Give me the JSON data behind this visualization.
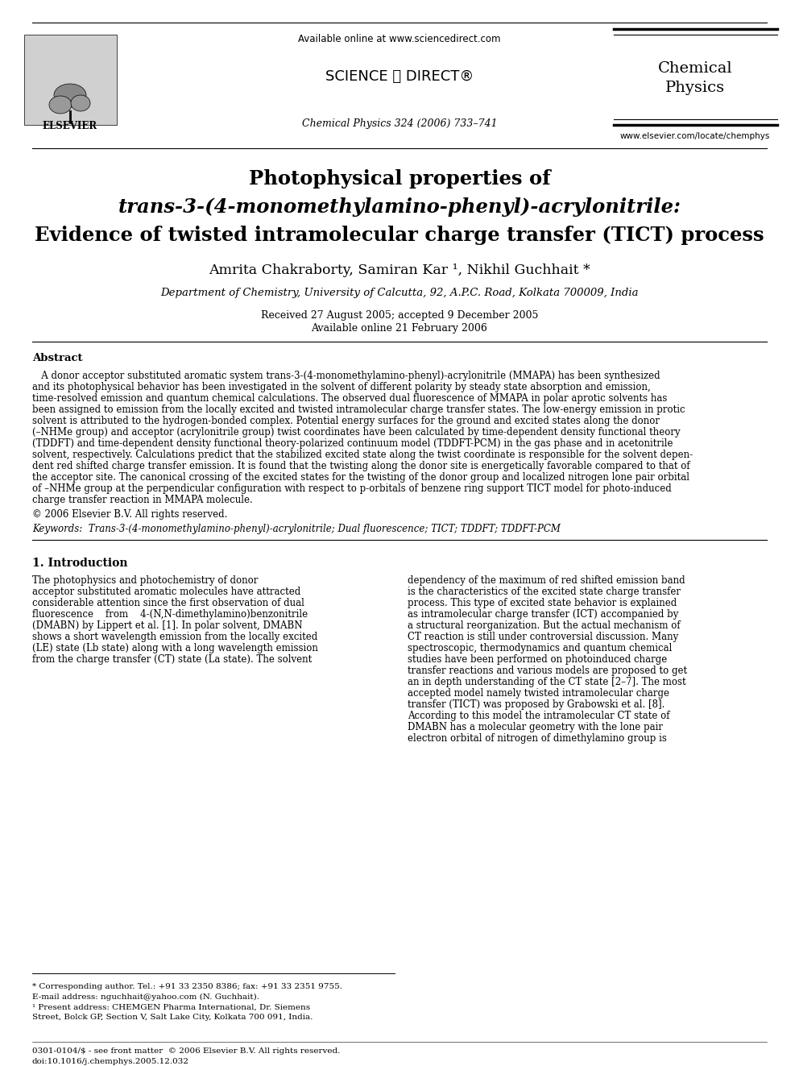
{
  "bg_color": "#ffffff",
  "available_online": "Available online at www.sciencedirect.com",
  "journal_ref": "Chemical Physics 324 (2006) 733–741",
  "journal_title": "Chemical\nPhysics",
  "website": "www.elsevier.com/locate/chemphys",
  "elsevier_label": "ELSEVIER",
  "sciencedirect_label": "SCIENCE ⓐ DIRECT®",
  "title_line1": "Photophysical properties of",
  "title_line2_italic": "trans",
  "title_line2_rest": "-3-(4-monomethylamino-phenyl)-acrylonitrile:",
  "title_line3": "Evidence of twisted intramolecular charge transfer (TICT) process",
  "authors": "Amrita Chakraborty, Samiran Kar ¹, Nikhil Guchhait *",
  "affiliation": "Department of Chemistry, University of Calcutta, 92, A.P.C. Road, Kolkata 700009, India",
  "received": "Received 27 August 2005; accepted 9 December 2005",
  "available_date": "Available online 21 February 2006",
  "abstract_label": "Abstract",
  "abstract_lines": [
    "   A donor acceptor substituted aromatic system trans-3-(4-monomethylamino-phenyl)-acrylonitrile (MMAPA) has been synthesized",
    "and its photophysical behavior has been investigated in the solvent of different polarity by steady state absorption and emission,",
    "time-resolved emission and quantum chemical calculations. The observed dual fluorescence of MMAPA in polar aprotic solvents has",
    "been assigned to emission from the locally excited and twisted intramolecular charge transfer states. The low-energy emission in protic",
    "solvent is attributed to the hydrogen-bonded complex. Potential energy surfaces for the ground and excited states along the donor",
    "(–NHMe group) and acceptor (acrylonitrile group) twist coordinates have been calculated by time-dependent density functional theory",
    "(TDDFT) and time-dependent density functional theory-polarized continuum model (TDDFT-PCM) in the gas phase and in acetonitrile",
    "solvent, respectively. Calculations predict that the stabilized excited state along the twist coordinate is responsible for the solvent depen-",
    "dent red shifted charge transfer emission. It is found that the twisting along the donor site is energetically favorable compared to that of",
    "the acceptor site. The canonical crossing of the excited states for the twisting of the donor group and localized nitrogen lone pair orbital",
    "of –NHMe group at the perpendicular configuration with respect to p-orbitals of benzene ring support TICT model for photo-induced",
    "charge transfer reaction in MMAPA molecule."
  ],
  "copyright": "© 2006 Elsevier B.V. All rights reserved.",
  "keywords_line": "Keywords:  Trans-3-(4-monomethylamino-phenyl)-acrylonitrile; Dual fluorescence; TICT; TDDFT; TDDFT-PCM",
  "intro_title": "1. Introduction",
  "intro_left_lines": [
    "The photophysics and photochemistry of donor",
    "acceptor substituted aromatic molecules have attracted",
    "considerable attention since the first observation of dual",
    "fluorescence    from    4-(N,N-dimethylamino)benzonitrile",
    "(DMABN) by Lippert et al. [1]. In polar solvent, DMABN",
    "shows a short wavelength emission from the locally excited",
    "(LE) state (Lb state) along with a long wavelength emission",
    "from the charge transfer (CT) state (La state). The solvent"
  ],
  "intro_right_lines": [
    "dependency of the maximum of red shifted emission band",
    "is the characteristics of the excited state charge transfer",
    "process. This type of excited state behavior is explained",
    "as intramolecular charge transfer (ICT) accompanied by",
    "a structural reorganization. But the actual mechanism of",
    "CT reaction is still under controversial discussion. Many",
    "spectroscopic, thermodynamics and quantum chemical",
    "studies have been performed on photoinduced charge",
    "transfer reactions and various models are proposed to get",
    "an in depth understanding of the CT state [2–7]. The most",
    "accepted model namely twisted intramolecular charge",
    "transfer (TICT) was proposed by Grabowski et al. [8].",
    "According to this model the intramolecular CT state of",
    "DMABN has a molecular geometry with the lone pair",
    "electron orbital of nitrogen of dimethylamino group is"
  ],
  "footnote_star": "* Corresponding author. Tel.: +91 33 2350 8386; fax: +91 33 2351 9755.",
  "footnote_email": "E-mail address: nguchhait@yahoo.com (N. Guchhait).",
  "footnote_1a": "¹ Present address: CHEMGEN Pharma International, Dr. Siemens",
  "footnote_1b": "Street, Bolck GP, Section V, Salt Lake City, Kolkata 700 091, India.",
  "footer_issn": "0301-0104/$ - see front matter  © 2006 Elsevier B.V. All rights reserved.",
  "footer_doi": "doi:10.1016/j.chemphys.2005.12.032"
}
